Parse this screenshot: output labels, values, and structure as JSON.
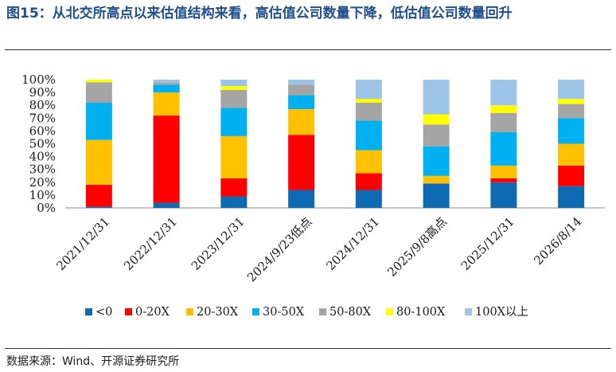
{
  "title": "图15：从北交所高点以来估值结构来看，高估值公司数量下降，低估值公司数量回升",
  "source": "数据来源：Wind、开源证券研究所",
  "chart_data": {
    "type": "bar",
    "stacked": true,
    "percent": true,
    "categories": [
      "2021/12/31",
      "2022/12/31",
      "2023/12/31",
      "2024/9/23低点",
      "2024/12/31",
      "2025/9/8高点",
      "2025/12/31",
      "2026/8/14"
    ],
    "y_ticks": [
      "0%",
      "10%",
      "20%",
      "30%",
      "40%",
      "50%",
      "60%",
      "70%",
      "80%",
      "90%",
      "100%"
    ],
    "ylim": [
      0,
      100
    ],
    "legend_position": "bottom",
    "series": [
      {
        "name": "<0",
        "color": "#0f6ab4",
        "values": [
          1,
          4,
          9,
          14,
          14,
          19,
          20,
          17
        ]
      },
      {
        "name": "0-20X",
        "color": "#ff0000",
        "values": [
          17,
          68,
          14,
          43,
          13,
          0,
          3,
          16
        ]
      },
      {
        "name": "20-30X",
        "color": "#ffc000",
        "values": [
          35,
          18,
          33,
          20,
          18,
          6,
          10,
          17
        ]
      },
      {
        "name": "30-50X",
        "color": "#00b0f0",
        "values": [
          29,
          6,
          22,
          11,
          23,
          23,
          26,
          20
        ]
      },
      {
        "name": "50-80X",
        "color": "#a5a5a5",
        "values": [
          16,
          2,
          14,
          8,
          14,
          17,
          15,
          11
        ]
      },
      {
        "name": "80-100X",
        "color": "#ffff00",
        "values": [
          2,
          0,
          3,
          0,
          3,
          8,
          6,
          4
        ]
      },
      {
        "name": "100X以上",
        "color": "#9dc3e6",
        "values": [
          0,
          2,
          5,
          4,
          15,
          27,
          20,
          15
        ]
      }
    ]
  }
}
